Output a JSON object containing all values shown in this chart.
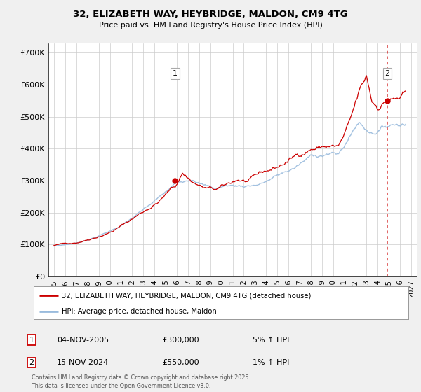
{
  "title": "32, ELIZABETH WAY, HEYBRIDGE, MALDON, CM9 4TG",
  "subtitle": "Price paid vs. HM Land Registry's House Price Index (HPI)",
  "ylabel_ticks": [
    "£0",
    "£100K",
    "£200K",
    "£300K",
    "£400K",
    "£500K",
    "£600K",
    "£700K"
  ],
  "ytick_vals": [
    0,
    100000,
    200000,
    300000,
    400000,
    500000,
    600000,
    700000
  ],
  "ylim": [
    0,
    730000
  ],
  "xlim_start": 1994.5,
  "xlim_end": 2027.5,
  "xtick_years": [
    1995,
    1996,
    1997,
    1998,
    1999,
    2000,
    2001,
    2002,
    2003,
    2004,
    2005,
    2006,
    2007,
    2008,
    2009,
    2010,
    2011,
    2012,
    2013,
    2014,
    2015,
    2016,
    2017,
    2018,
    2019,
    2020,
    2021,
    2022,
    2023,
    2024,
    2025,
    2026,
    2027
  ],
  "legend_entries": [
    "32, ELIZABETH WAY, HEYBRIDGE, MALDON, CM9 4TG (detached house)",
    "HPI: Average price, detached house, Maldon"
  ],
  "legend_colors": [
    "#cc0000",
    "#6699cc"
  ],
  "sale1_label": "1",
  "sale1_date": "04-NOV-2005",
  "sale1_price": "£300,000",
  "sale1_hpi": "5% ↑ HPI",
  "sale1_x": 2005.84,
  "sale1_y": 300000,
  "sale2_label": "2",
  "sale2_date": "15-NOV-2024",
  "sale2_price": "£550,000",
  "sale2_hpi": "1% ↑ HPI",
  "sale2_x": 2024.87,
  "sale2_y": 550000,
  "copyright": "Contains HM Land Registry data © Crown copyright and database right 2025.\nThis data is licensed under the Open Government Licence v3.0.",
  "bg_color": "#f0f0f0",
  "plot_bg": "#ffffff",
  "grid_color": "#cccccc",
  "red_line_color": "#cc0000",
  "blue_line_color": "#99bbdd"
}
